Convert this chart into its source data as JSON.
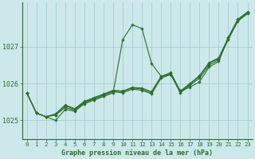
{
  "title": "Graphe pression niveau de la mer (hPa)",
  "bg_color": "#cce8ea",
  "grid_color": "#99cccc",
  "line_color": "#2d6e2d",
  "marker_color": "#2d6e2d",
  "xlim": [
    -0.5,
    23.5
  ],
  "ylim": [
    1024.5,
    1028.2
  ],
  "yticks": [
    1025,
    1026,
    1027
  ],
  "xticks": [
    0,
    1,
    2,
    3,
    4,
    5,
    6,
    7,
    8,
    9,
    10,
    11,
    12,
    13,
    14,
    15,
    16,
    17,
    18,
    19,
    20,
    21,
    22,
    23
  ],
  "series": [
    [
      1025.75,
      1025.2,
      1025.1,
      1025.0,
      1025.3,
      1025.25,
      1025.45,
      1025.55,
      1025.65,
      1025.75,
      1027.2,
      1027.6,
      1027.5,
      1026.55,
      1026.2,
      1026.25,
      1025.8,
      1025.9,
      1026.05,
      1026.45,
      1026.6,
      1027.25,
      1027.75,
      1027.95
    ],
    [
      1025.75,
      1025.2,
      1025.1,
      1025.15,
      1025.35,
      1025.28,
      1025.48,
      1025.58,
      1025.68,
      1025.78,
      1025.75,
      1025.85,
      1025.82,
      1025.72,
      1026.15,
      1026.25,
      1025.75,
      1025.95,
      1026.15,
      1026.5,
      1026.65,
      1027.2,
      1027.7,
      1027.9
    ],
    [
      1025.75,
      1025.2,
      1025.1,
      1025.15,
      1025.4,
      1025.3,
      1025.5,
      1025.6,
      1025.7,
      1025.8,
      1025.78,
      1025.88,
      1025.85,
      1025.75,
      1026.18,
      1026.28,
      1025.78,
      1025.98,
      1026.2,
      1026.55,
      1026.68,
      1027.22,
      1027.72,
      1027.92
    ],
    [
      1025.75,
      1025.2,
      1025.1,
      1025.18,
      1025.42,
      1025.32,
      1025.52,
      1025.62,
      1025.72,
      1025.82,
      1025.8,
      1025.9,
      1025.88,
      1025.78,
      1026.2,
      1026.3,
      1025.8,
      1026.0,
      1026.22,
      1026.57,
      1026.7,
      1027.25,
      1027.75,
      1027.93
    ]
  ]
}
